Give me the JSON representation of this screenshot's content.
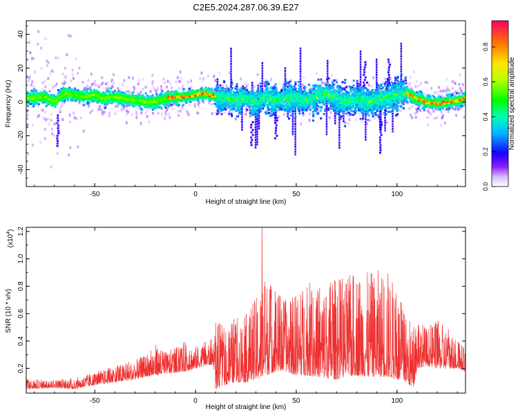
{
  "title": "C2E5.2024.287.06.39.E27",
  "chart_data": [
    {
      "type": "heatmap",
      "xlabel": "Height of straight line (km)",
      "ylabel": "Frequency (Hz)",
      "xlim": [
        -84,
        134
      ],
      "ylim": [
        -50,
        48
      ],
      "xticks": [
        -50,
        0,
        50,
        100
      ],
      "xtick_labels": [
        "-50",
        "0",
        "50",
        "100"
      ],
      "yticks": [
        -40,
        -20,
        0,
        20,
        40
      ],
      "ytick_labels": [
        "-40",
        "-20",
        "0",
        "20",
        "40"
      ],
      "colorbar": {
        "label": "Normalized spectral amplitude",
        "range": [
          0,
          0.95
        ],
        "ticks": [
          0.0,
          0.2,
          0.4,
          0.6,
          0.8
        ],
        "tick_labels": [
          "0.0",
          "0.2",
          "0.4",
          "0.6",
          "0.8"
        ]
      },
      "ridge": {
        "x": [
          -84,
          -75,
          -70,
          -65,
          -60,
          -55,
          -50,
          -45,
          -40,
          -35,
          -30,
          -25,
          -20,
          -15,
          -10,
          -5,
          0,
          5,
          10,
          15,
          20,
          25,
          30,
          35,
          40,
          45,
          50,
          55,
          60,
          65,
          70,
          75,
          80,
          85,
          90,
          95,
          100,
          105,
          110,
          115,
          120,
          125,
          130,
          134
        ],
        "y": [
          2,
          3,
          0,
          5,
          4,
          3,
          4,
          2,
          3,
          2,
          1,
          0,
          0,
          2,
          3,
          3,
          4,
          5,
          3,
          2,
          1,
          2,
          0,
          3,
          1,
          2,
          2,
          1,
          3,
          5,
          2,
          0,
          2,
          0,
          1,
          3,
          4,
          5,
          2,
          0,
          -1,
          0,
          1,
          2
        ]
      }
    },
    {
      "type": "line",
      "xlabel": "Height of straight line (km)",
      "ylabel": "SNR (10 * v/v)",
      "y_multiplier": "(x10",
      "y_multiplier_exp": "4",
      "xlim": [
        -84,
        134
      ],
      "ylim": [
        0.02,
        1.23
      ],
      "xticks": [
        -50,
        0,
        50,
        100
      ],
      "xtick_labels": [
        "-50",
        "0",
        "50",
        "100"
      ],
      "yticks": [
        0.2,
        0.4,
        0.6,
        0.8,
        1.0,
        1.2
      ],
      "ytick_labels": [
        "0.2",
        "0.4",
        "0.6",
        "0.8",
        "1.0",
        "1.2"
      ],
      "envelope": {
        "x": [
          -84,
          -70,
          -60,
          -50,
          -40,
          -30,
          -25,
          -20,
          -15,
          -10,
          -5,
          0,
          5,
          9,
          10,
          15,
          20,
          25,
          30,
          35,
          40,
          45,
          50,
          55,
          60,
          65,
          70,
          75,
          80,
          85,
          90,
          95,
          100,
          105,
          108,
          110,
          115,
          120,
          125,
          130,
          134
        ],
        "base": [
          0.05,
          0.06,
          0.05,
          0.08,
          0.1,
          0.12,
          0.14,
          0.15,
          0.16,
          0.17,
          0.18,
          0.2,
          0.22,
          0.23,
          0.05,
          0.08,
          0.1,
          0.1,
          0.12,
          0.15,
          0.18,
          0.18,
          0.15,
          0.15,
          0.14,
          0.13,
          0.12,
          0.14,
          0.15,
          0.14,
          0.14,
          0.14,
          0.12,
          0.1,
          0.05,
          0.2,
          0.22,
          0.2,
          0.2,
          0.2,
          0.18
        ],
        "peak": [
          0.12,
          0.12,
          0.13,
          0.17,
          0.22,
          0.26,
          0.3,
          0.38,
          0.32,
          0.35,
          0.4,
          0.36,
          0.4,
          0.42,
          0.55,
          0.5,
          0.58,
          0.6,
          0.72,
          0.9,
          0.8,
          0.7,
          0.75,
          0.85,
          0.8,
          0.82,
          0.88,
          0.85,
          0.95,
          0.9,
          0.92,
          0.95,
          0.78,
          0.58,
          0.5,
          0.58,
          0.5,
          0.55,
          0.5,
          0.42,
          0.35
        ],
        "max_spike": {
          "x": 33,
          "y": 1.25
        }
      }
    }
  ]
}
